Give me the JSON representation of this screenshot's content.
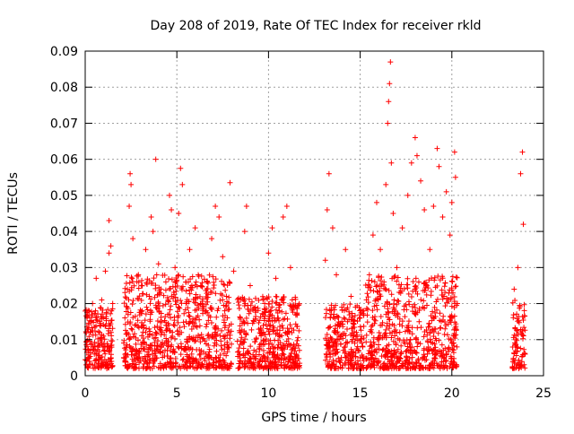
{
  "chart_data": {
    "type": "scatter",
    "title": "Day 208 of 2019, Rate Of TEC Index for receiver rkld",
    "xlabel": "GPS time / hours",
    "ylabel": "ROTI / TECUs",
    "xlim": [
      0,
      25
    ],
    "ylim": [
      0,
      0.09
    ],
    "xticks": [
      0,
      5,
      10,
      15,
      20,
      25
    ],
    "yticks": [
      0,
      0.01,
      0.02,
      0.03,
      0.04,
      0.05,
      0.06,
      0.07,
      0.08,
      0.09
    ],
    "grid": true,
    "marker": "+",
    "marker_color": "#ff0000",
    "series": [
      {
        "name": "",
        "points": [
          [
            0.05,
            0.003
          ],
          [
            0.1,
            0.016
          ],
          [
            0.2,
            0.007
          ],
          [
            0.3,
            0.012
          ],
          [
            0.4,
            0.02
          ],
          [
            0.5,
            0.006
          ],
          [
            0.6,
            0.027
          ],
          [
            0.7,
            0.008
          ],
          [
            0.8,
            0.014
          ],
          [
            0.9,
            0.021
          ],
          [
            1.0,
            0.011
          ],
          [
            1.1,
            0.029
          ],
          [
            1.2,
            0.008
          ],
          [
            1.3,
            0.034
          ],
          [
            1.4,
            0.036
          ],
          [
            1.5,
            0.02
          ],
          [
            1.3,
            0.043
          ],
          [
            2.1,
            0.005
          ],
          [
            2.3,
            0.024
          ],
          [
            2.4,
            0.047
          ],
          [
            2.45,
            0.056
          ],
          [
            2.5,
            0.053
          ],
          [
            2.6,
            0.038
          ],
          [
            2.7,
            0.014
          ],
          [
            2.9,
            0.028
          ],
          [
            3.1,
            0.018
          ],
          [
            3.3,
            0.035
          ],
          [
            3.5,
            0.022
          ],
          [
            3.6,
            0.044
          ],
          [
            3.7,
            0.04
          ],
          [
            3.85,
            0.06
          ],
          [
            4.0,
            0.031
          ],
          [
            4.2,
            0.012
          ],
          [
            4.4,
            0.026
          ],
          [
            4.6,
            0.05
          ],
          [
            4.7,
            0.046
          ],
          [
            4.9,
            0.03
          ],
          [
            5.1,
            0.045
          ],
          [
            5.2,
            0.0575
          ],
          [
            5.3,
            0.053
          ],
          [
            5.5,
            0.02
          ],
          [
            5.7,
            0.035
          ],
          [
            6.0,
            0.041
          ],
          [
            6.3,
            0.025
          ],
          [
            6.6,
            0.018
          ],
          [
            6.9,
            0.038
          ],
          [
            7.1,
            0.047
          ],
          [
            7.3,
            0.044
          ],
          [
            7.5,
            0.033
          ],
          [
            7.7,
            0.022
          ],
          [
            7.9,
            0.0535
          ],
          [
            8.1,
            0.029
          ],
          [
            8.5,
            0.012
          ],
          [
            8.7,
            0.04
          ],
          [
            8.8,
            0.047
          ],
          [
            9.0,
            0.025
          ],
          [
            9.2,
            0.015
          ],
          [
            9.5,
            0.008
          ],
          [
            9.7,
            0.021
          ],
          [
            10.0,
            0.034
          ],
          [
            10.2,
            0.041
          ],
          [
            10.4,
            0.027
          ],
          [
            10.6,
            0.018
          ],
          [
            10.8,
            0.044
          ],
          [
            11.0,
            0.047
          ],
          [
            11.2,
            0.03
          ],
          [
            11.5,
            0.019
          ],
          [
            13.1,
            0.032
          ],
          [
            13.2,
            0.046
          ],
          [
            13.3,
            0.056
          ],
          [
            13.5,
            0.041
          ],
          [
            13.7,
            0.028
          ],
          [
            14.0,
            0.015
          ],
          [
            14.2,
            0.035
          ],
          [
            14.5,
            0.022
          ],
          [
            14.8,
            0.012
          ],
          [
            15.2,
            0.018
          ],
          [
            15.5,
            0.028
          ],
          [
            15.7,
            0.039
          ],
          [
            15.9,
            0.048
          ],
          [
            16.1,
            0.035
          ],
          [
            16.3,
            0.026
          ],
          [
            16.4,
            0.053
          ],
          [
            16.5,
            0.07
          ],
          [
            16.55,
            0.076
          ],
          [
            16.6,
            0.081
          ],
          [
            16.65,
            0.087
          ],
          [
            16.7,
            0.059
          ],
          [
            16.8,
            0.045
          ],
          [
            17.0,
            0.03
          ],
          [
            17.3,
            0.041
          ],
          [
            17.6,
            0.05
          ],
          [
            17.8,
            0.059
          ],
          [
            18.0,
            0.066
          ],
          [
            18.1,
            0.061
          ],
          [
            18.3,
            0.054
          ],
          [
            18.5,
            0.046
          ],
          [
            18.8,
            0.035
          ],
          [
            19.0,
            0.047
          ],
          [
            19.2,
            0.063
          ],
          [
            19.3,
            0.058
          ],
          [
            19.5,
            0.044
          ],
          [
            19.7,
            0.051
          ],
          [
            19.9,
            0.039
          ],
          [
            20.0,
            0.048
          ],
          [
            20.15,
            0.062
          ],
          [
            20.2,
            0.055
          ],
          [
            20.3,
            0.02
          ],
          [
            23.4,
            0.024
          ],
          [
            23.6,
            0.03
          ],
          [
            23.75,
            0.056
          ],
          [
            23.85,
            0.062
          ],
          [
            23.9,
            0.042
          ],
          [
            24.0,
            0.006
          ]
        ],
        "dense_clusters": [
          {
            "x_range": [
              0.0,
              1.5
            ],
            "y_range": [
              0.002,
              0.019
            ]
          },
          {
            "x_range": [
              2.1,
              8.0
            ],
            "y_range": [
              0.002,
              0.028
            ]
          },
          {
            "x_range": [
              8.3,
              11.7
            ],
            "y_range": [
              0.002,
              0.022
            ]
          },
          {
            "x_range": [
              13.1,
              15.2
            ],
            "y_range": [
              0.002,
              0.02
            ]
          },
          {
            "x_range": [
              15.3,
              20.3
            ],
            "y_range": [
              0.002,
              0.028
            ]
          },
          {
            "x_range": [
              23.3,
              24.0
            ],
            "y_range": [
              0.002,
              0.021
            ]
          }
        ]
      }
    ]
  }
}
